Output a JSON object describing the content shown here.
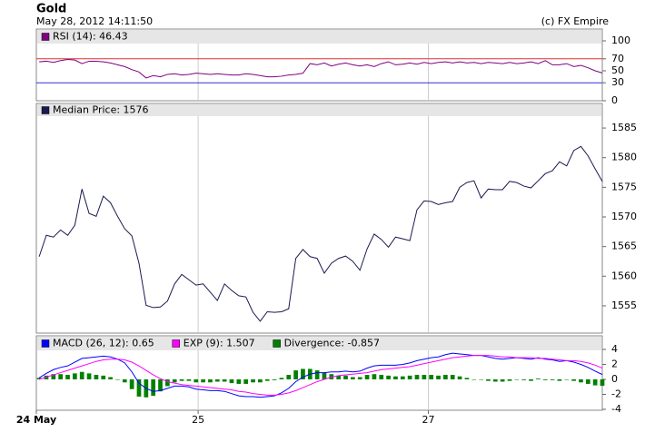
{
  "title": "Gold",
  "subtitle": "May 28, 2012 14:11:50",
  "credit": "(c) FX Empire",
  "chart_data": [
    {
      "type": "line",
      "xlim": [
        -0.4,
        79
      ],
      "ylim": [
        0,
        100
      ],
      "yticks": [
        100,
        70,
        50,
        30,
        0
      ],
      "reference_lines": [
        {
          "value": 70,
          "color": "#e03030"
        },
        {
          "value": 30,
          "color": "#3030e0"
        }
      ],
      "series": [
        {
          "name": "RSI (14): 46.43",
          "color": "#800080",
          "values": [
            65,
            66,
            64,
            67,
            69,
            68,
            62,
            66,
            66,
            65,
            63,
            60,
            57,
            52,
            48,
            38,
            42,
            40,
            44,
            45,
            43,
            44,
            46,
            45,
            44,
            45,
            44,
            43,
            43,
            45,
            44,
            42,
            40,
            40,
            41,
            43,
            44,
            46,
            62,
            60,
            63,
            58,
            61,
            63,
            60,
            58,
            60,
            57,
            62,
            65,
            60,
            61,
            63,
            61,
            64,
            62,
            64,
            65,
            63,
            65,
            63,
            64,
            62,
            64,
            63,
            62,
            64,
            62,
            63,
            65,
            62,
            67,
            60,
            60,
            62,
            57,
            59,
            55,
            50,
            46.43
          ]
        }
      ]
    },
    {
      "type": "line",
      "xlim": [
        -0.4,
        79
      ],
      "ylim": [
        1550.4,
        1587
      ],
      "yticks": [
        1585,
        1580,
        1575,
        1570,
        1565,
        1560,
        1555
      ],
      "series": [
        {
          "name": "Median Price: 1576",
          "color": "#1a1a50",
          "values": [
            1563.3,
            1566.9,
            1566.6,
            1567.8,
            1566.9,
            1568.6,
            1574.7,
            1570.6,
            1570.1,
            1573.5,
            1572.4,
            1570.1,
            1568,
            1566.8,
            1562.2,
            1555.1,
            1554.7,
            1554.8,
            1555.8,
            1558.7,
            1560.3,
            1559.4,
            1558.5,
            1558.7,
            1557.3,
            1555.9,
            1558.7,
            1557.6,
            1556.7,
            1556.5,
            1553.9,
            1552.4,
            1554,
            1553.9,
            1554,
            1554.5,
            1563,
            1564.5,
            1563.3,
            1563,
            1560.5,
            1562.2,
            1563,
            1563.4,
            1562.5,
            1561,
            1564.6,
            1567.1,
            1566.2,
            1564.9,
            1566.6,
            1566.3,
            1566,
            1571.2,
            1572.7,
            1572.6,
            1572.1,
            1572.4,
            1572.6,
            1575,
            1575.8,
            1576.1,
            1573.2,
            1574.7,
            1574.6,
            1574.6,
            1576,
            1575.8,
            1575.2,
            1574.9,
            1576.1,
            1577.3,
            1577.8,
            1579.3,
            1578.6,
            1581.2,
            1581.9,
            1580.3,
            1578.1,
            1576
          ]
        }
      ]
    },
    {
      "type": "line",
      "xlim": [
        -0.4,
        79
      ],
      "ylim": [
        -4,
        4
      ],
      "yticks": [
        4,
        2,
        0,
        -2,
        -4
      ],
      "xticks": [
        {
          "value": -0.4,
          "label": "24 May"
        },
        {
          "value": 22.3,
          "label": "25"
        },
        {
          "value": 54.6,
          "label": "27"
        }
      ],
      "series": [
        {
          "name": "Divergence: -0.857",
          "type": "bar",
          "color": "#008000",
          "values": [
            0.2,
            0.5,
            0.7,
            0.7,
            0.6,
            0.8,
            1.0,
            0.8,
            0.6,
            0.5,
            0.3,
            0.0,
            -0.4,
            -1.3,
            -2.3,
            -2.4,
            -2.2,
            -1.6,
            -0.9,
            -0.4,
            -0.2,
            -0.2,
            -0.4,
            -0.4,
            -0.4,
            -0.3,
            -0.3,
            -0.5,
            -0.6,
            -0.6,
            -0.4,
            -0.4,
            -0.2,
            -0.1,
            0.2,
            0.6,
            1.2,
            1.4,
            1.4,
            1.2,
            0.9,
            0.7,
            0.5,
            0.5,
            0.3,
            0.3,
            0.6,
            0.7,
            0.6,
            0.5,
            0.4,
            0.4,
            0.5,
            0.6,
            0.6,
            0.6,
            0.5,
            0.6,
            0.6,
            0.4,
            0.2,
            0.0,
            0.0,
            -0.2,
            -0.3,
            -0.3,
            -0.2,
            0.0,
            -0.1,
            -0.2,
            0.1,
            -0.1,
            -0.1,
            -0.2,
            0.0,
            -0.2,
            -0.4,
            -0.6,
            -0.8,
            -0.857
          ]
        },
        {
          "name": "MACD (26, 12): 0.65",
          "color": "#0000ff",
          "values": [
            0.2,
            0.8,
            1.3,
            1.6,
            1.8,
            2.3,
            2.8,
            2.9,
            3.0,
            3.1,
            3.0,
            2.7,
            2.2,
            1.0,
            -0.5,
            -1.2,
            -1.6,
            -1.5,
            -1.2,
            -0.9,
            -0.9,
            -1.0,
            -1.3,
            -1.4,
            -1.5,
            -1.5,
            -1.6,
            -1.9,
            -2.2,
            -2.3,
            -2.3,
            -2.4,
            -2.3,
            -2.2,
            -1.8,
            -1.2,
            -0.3,
            0.3,
            0.7,
            0.9,
            0.9,
            1.0,
            1.0,
            1.1,
            1.0,
            1.1,
            1.5,
            1.8,
            1.9,
            1.9,
            1.9,
            2.0,
            2.2,
            2.5,
            2.7,
            2.9,
            3.0,
            3.3,
            3.5,
            3.4,
            3.3,
            3.2,
            3.2,
            3.0,
            2.8,
            2.7,
            2.8,
            2.9,
            2.8,
            2.7,
            2.9,
            2.7,
            2.6,
            2.4,
            2.5,
            2.3,
            2.0,
            1.6,
            1.1,
            0.65
          ]
        },
        {
          "name": "EXP (9): 1.507",
          "color": "#ff00ff",
          "values": [
            0.0,
            0.3,
            0.6,
            0.9,
            1.2,
            1.5,
            1.8,
            2.1,
            2.4,
            2.6,
            2.7,
            2.7,
            2.6,
            2.3,
            1.8,
            1.2,
            0.6,
            0.1,
            -0.3,
            -0.5,
            -0.7,
            -0.8,
            -0.9,
            -1.0,
            -1.1,
            -1.2,
            -1.3,
            -1.4,
            -1.6,
            -1.7,
            -1.9,
            -2.0,
            -2.1,
            -2.1,
            -2.0,
            -1.8,
            -1.5,
            -1.1,
            -0.7,
            -0.3,
            0.0,
            0.3,
            0.5,
            0.6,
            0.7,
            0.8,
            0.9,
            1.1,
            1.3,
            1.4,
            1.5,
            1.6,
            1.7,
            1.9,
            2.1,
            2.3,
            2.5,
            2.7,
            2.9,
            3.0,
            3.1,
            3.2,
            3.2,
            3.2,
            3.1,
            3.0,
            3.0,
            2.9,
            2.9,
            2.9,
            2.8,
            2.8,
            2.7,
            2.6,
            2.5,
            2.5,
            2.4,
            2.2,
            1.9,
            1.507
          ]
        }
      ]
    }
  ]
}
